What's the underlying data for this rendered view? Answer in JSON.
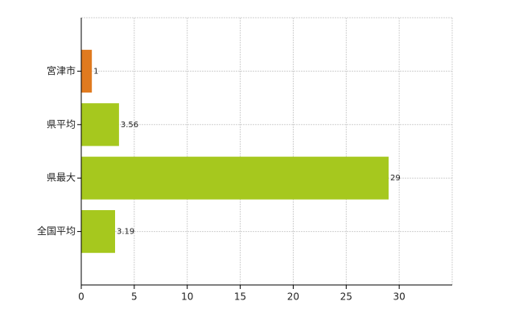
{
  "chart_data": {
    "type": "bar",
    "orientation": "horizontal",
    "categories": [
      "宮津市",
      "県平均",
      "県最大",
      "全国平均"
    ],
    "values": [
      1,
      3.56,
      29,
      3.19
    ],
    "colors": [
      "#e07a1f",
      "#a6c81e",
      "#a6c81e",
      "#a6c81e"
    ],
    "xlim": [
      0,
      35
    ],
    "xticks": [
      0,
      5,
      10,
      15,
      20,
      25,
      30
    ],
    "grid": true
  }
}
